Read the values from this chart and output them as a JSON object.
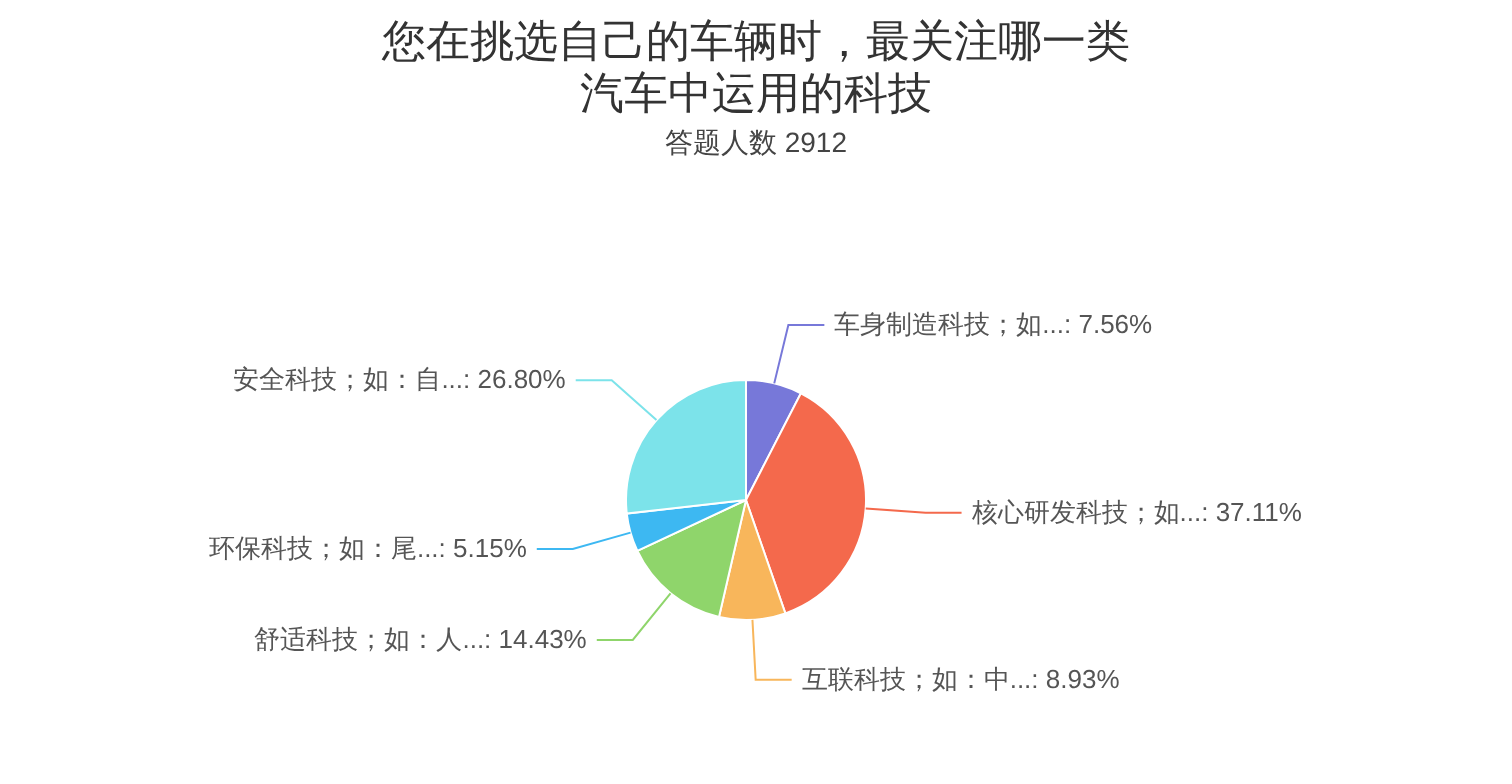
{
  "chart_data": {
    "type": "pie",
    "title": "您在挑选自己的车辆时，最关注哪一类汽车中运用的科技",
    "subtitle": "答题人数 2912",
    "categories": [
      "车身制造科技；如...",
      "核心研发科技；如...",
      "互联科技；如：中...",
      "舒适科技；如：人...",
      "环保科技；如：尾...",
      "安全科技；如：自..."
    ],
    "values": [
      7.56,
      37.11,
      8.93,
      14.43,
      5.15,
      26.8
    ],
    "value_labels": [
      "7.56%",
      "37.11%",
      "8.93%",
      "14.43%",
      "5.15%",
      "26.80%"
    ],
    "colors": [
      "#7778d9",
      "#f4694c",
      "#f8b65b",
      "#8fd56b",
      "#3db8f2",
      "#7ce3ea"
    ]
  }
}
